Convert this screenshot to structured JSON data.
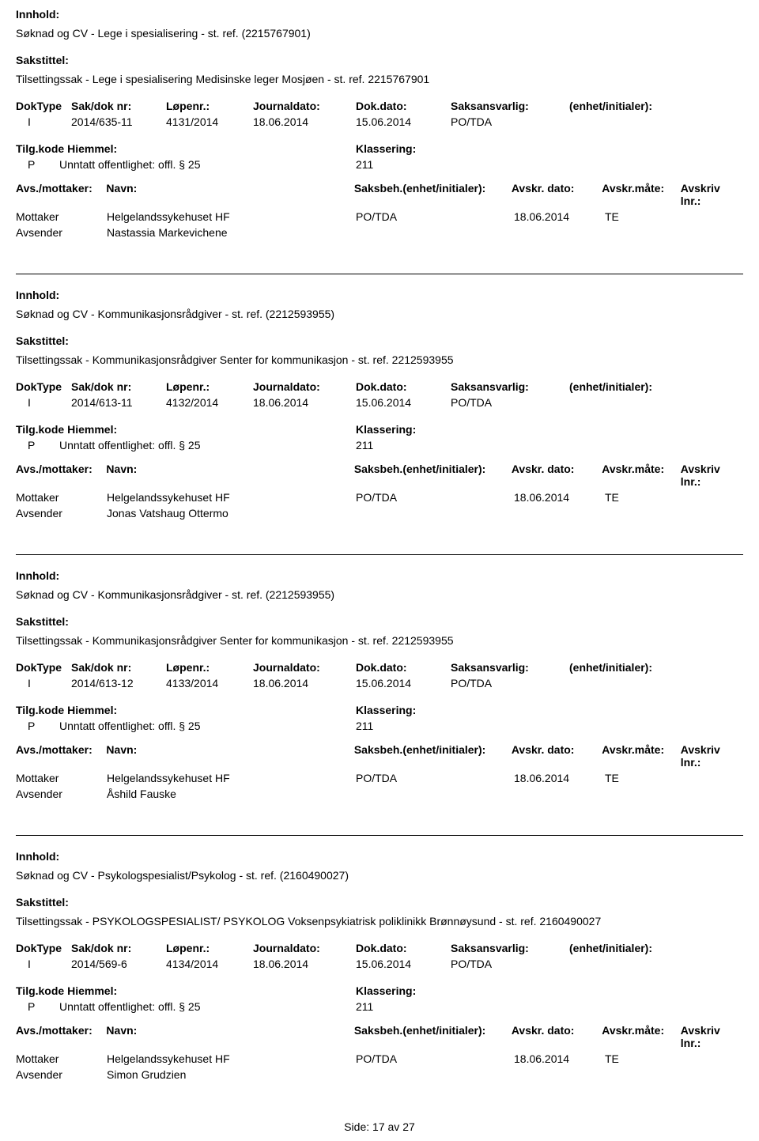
{
  "labels": {
    "innhold": "Innhold:",
    "sakstittel": "Sakstittel:",
    "doktype": "DokType",
    "sakdoknr": "Sak/dok nr:",
    "lopenr": "Løpenr.:",
    "journaldato": "Journaldato:",
    "dokdato": "Dok.dato:",
    "saksansvarlig": "Saksansvarlig:",
    "enhet": "(enhet/initialer):",
    "tilgkode": "Tilg.kode",
    "hjemmel": "Hiemmel:",
    "klassering": "Klassering:",
    "avsmottaker": "Avs./mottaker:",
    "navn": "Navn:",
    "saksbeh": "Saksbeh.(enhet/initialer):",
    "avskrdato": "Avskr. dato:",
    "avskrmate": "Avskr.måte:",
    "avskrivlnr": "Avskriv lnr.:",
    "mottaker": "Mottaker",
    "avsender": "Avsender"
  },
  "footer": {
    "side": "Side:",
    "page": "17",
    "av": "av",
    "total": "27"
  },
  "records": [
    {
      "innhold": "Søknad og CV - Lege i spesialisering - st. ref. (2215767901)",
      "sakstittel": "Tilsettingssak - Lege i spesialisering Medisinske leger Mosjøen - st. ref. 2215767901",
      "doktype": "I",
      "sakdok": "2014/635-11",
      "lopenr": "4131/2014",
      "journaldato": "18.06.2014",
      "dokdato": "15.06.2014",
      "saksansvarlig": "PO/TDA",
      "tilgkode": "P",
      "hjemmel": "Unntatt offentlighet: offl. § 25",
      "klassering": "211",
      "mottaker_navn": "Helgelandssykehuset HF",
      "saksbeh": "PO/TDA",
      "avskrdato": "18.06.2014",
      "avskrmate": "TE",
      "avsender_navn": "Nastassia Markevichene"
    },
    {
      "innhold": "Søknad og CV - Kommunikasjonsrådgiver - st. ref. (2212593955)",
      "sakstittel": "Tilsettingssak - Kommunikasjonsrådgiver Senter for kommunikasjon - st. ref. 2212593955",
      "doktype": "I",
      "sakdok": "2014/613-11",
      "lopenr": "4132/2014",
      "journaldato": "18.06.2014",
      "dokdato": "15.06.2014",
      "saksansvarlig": "PO/TDA",
      "tilgkode": "P",
      "hjemmel": "Unntatt offentlighet: offl. § 25",
      "klassering": "211",
      "mottaker_navn": "Helgelandssykehuset HF",
      "saksbeh": "PO/TDA",
      "avskrdato": "18.06.2014",
      "avskrmate": "TE",
      "avsender_navn": "Jonas Vatshaug Ottermo"
    },
    {
      "innhold": "Søknad og CV - Kommunikasjonsrådgiver - st. ref. (2212593955)",
      "sakstittel": "Tilsettingssak - Kommunikasjonsrådgiver Senter for kommunikasjon - st. ref. 2212593955",
      "doktype": "I",
      "sakdok": "2014/613-12",
      "lopenr": "4133/2014",
      "journaldato": "18.06.2014",
      "dokdato": "15.06.2014",
      "saksansvarlig": "PO/TDA",
      "tilgkode": "P",
      "hjemmel": "Unntatt offentlighet: offl. § 25",
      "klassering": "211",
      "mottaker_navn": "Helgelandssykehuset HF",
      "saksbeh": "PO/TDA",
      "avskrdato": "18.06.2014",
      "avskrmate": "TE",
      "avsender_navn": "Åshild Fauske"
    },
    {
      "innhold": "Søknad og CV - Psykologspesialist/Psykolog - st. ref. (2160490027)",
      "sakstittel": "Tilsettingssak - PSYKOLOGSPESIALIST/ PSYKOLOG Voksenpsykiatrisk poliklinikk Brønnøysund - st. ref. 2160490027",
      "doktype": "I",
      "sakdok": "2014/569-6",
      "lopenr": "4134/2014",
      "journaldato": "18.06.2014",
      "dokdato": "15.06.2014",
      "saksansvarlig": "PO/TDA",
      "tilgkode": "P",
      "hjemmel": "Unntatt offentlighet: offl. § 25",
      "klassering": "211",
      "mottaker_navn": "Helgelandssykehuset HF",
      "saksbeh": "PO/TDA",
      "avskrdato": "18.06.2014",
      "avskrmate": "TE",
      "avsender_navn": "Simon Grudzien"
    }
  ]
}
